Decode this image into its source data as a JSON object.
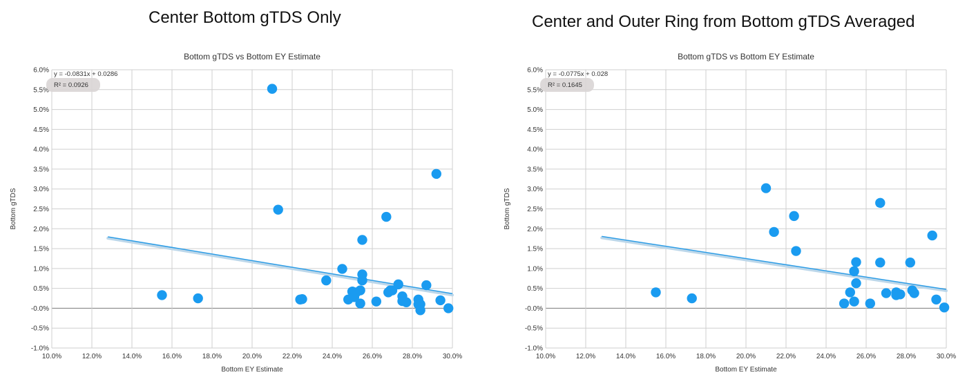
{
  "headings": [
    "Center Bottom gTDS Only",
    "Center and Outer Ring from Bottom gTDS Averaged"
  ],
  "colors": {
    "point": "#1a9bf0",
    "trend": "#2d9de6",
    "grid": "#cfcfcf",
    "zero": "#888888",
    "badge": "#d9d5d5"
  },
  "chart_data": [
    {
      "type": "scatter",
      "title": "Bottom gTDS vs Bottom EY Estimate",
      "xlabel": "Bottom EY Estimate",
      "ylabel": "Bottom gTDS",
      "xlim": [
        0.1,
        0.3
      ],
      "ylim": [
        -0.01,
        0.06
      ],
      "x_ticks": [
        "10.0%",
        "12.0%",
        "14.0%",
        "16.0%",
        "18.0%",
        "20.0%",
        "22.0%",
        "24.0%",
        "26.0%",
        "28.0%",
        "30.0%"
      ],
      "y_ticks": [
        "-1.0%",
        "-0.5%",
        "-0.0%",
        "0.5%",
        "1.0%",
        "1.5%",
        "2.0%",
        "2.5%",
        "3.0%",
        "3.5%",
        "4.0%",
        "4.5%",
        "5.0%",
        "5.5%",
        "6.0%"
      ],
      "trendline": {
        "slope": -0.0831,
        "intercept": 0.0286,
        "x_range": [
          0.128,
          0.3
        ]
      },
      "equation": "y = -0.0831x + 0.0286",
      "r_squared": "R² = 0.0926",
      "x": [
        0.155,
        0.173,
        0.21,
        0.213,
        0.224,
        0.225,
        0.237,
        0.245,
        0.248,
        0.25,
        0.251,
        0.252,
        0.254,
        0.254,
        0.255,
        0.255,
        0.255,
        0.262,
        0.267,
        0.268,
        0.269,
        0.27,
        0.273,
        0.275,
        0.275,
        0.277,
        0.283,
        0.283,
        0.284,
        0.284,
        0.287,
        0.292,
        0.294,
        0.298
      ],
      "y": [
        0.0033,
        0.0025,
        0.0552,
        0.0248,
        0.0022,
        0.0023,
        0.007,
        0.0099,
        0.0022,
        0.0042,
        0.0028,
        0.004,
        0.0045,
        0.0012,
        0.0085,
        0.007,
        0.0172,
        0.0017,
        0.023,
        0.004,
        0.0045,
        0.0045,
        0.006,
        0.0018,
        0.003,
        0.0015,
        0.0022,
        0.001,
        0.001,
        -0.0005,
        0.0058,
        0.0338,
        0.002,
        0.0
      ]
    },
    {
      "type": "scatter",
      "title": "Bottom gTDS  vs Bottom EY Estimate",
      "xlabel": "Bottom EY Estimate",
      "ylabel": "Bottom gTDS",
      "xlim": [
        0.1,
        0.3
      ],
      "ylim": [
        -0.01,
        0.06
      ],
      "x_ticks": [
        "10.0%",
        "12.0%",
        "14.0%",
        "16.0%",
        "18.0%",
        "20.0%",
        "22.0%",
        "24.0%",
        "26.0%",
        "28.0%",
        "30.0%"
      ],
      "y_ticks": [
        "-1.0%",
        "-0.5%",
        "-0.0%",
        "0.5%",
        "1.0%",
        "1.5%",
        "2.0%",
        "2.5%",
        "3.0%",
        "3.5%",
        "4.0%",
        "4.5%",
        "5.0%",
        "5.5%",
        "6.0%"
      ],
      "trendline": {
        "slope": -0.0775,
        "intercept": 0.028,
        "x_range": [
          0.128,
          0.3
        ]
      },
      "equation": "y = -0.0775x + 0.028",
      "r_squared": "R² = 0.1645",
      "x": [
        0.155,
        0.173,
        0.21,
        0.214,
        0.224,
        0.225,
        0.249,
        0.252,
        0.254,
        0.254,
        0.255,
        0.255,
        0.262,
        0.267,
        0.267,
        0.27,
        0.275,
        0.275,
        0.277,
        0.282,
        0.283,
        0.284,
        0.293,
        0.295,
        0.299
      ],
      "y": [
        0.004,
        0.0025,
        0.0302,
        0.0192,
        0.0232,
        0.0144,
        0.0012,
        0.004,
        0.0017,
        0.0093,
        0.0116,
        0.0063,
        0.0012,
        0.0265,
        0.0115,
        0.0038,
        0.004,
        0.0033,
        0.0035,
        0.0115,
        0.0045,
        0.0038,
        0.0183,
        0.0022,
        0.0002
      ]
    }
  ]
}
